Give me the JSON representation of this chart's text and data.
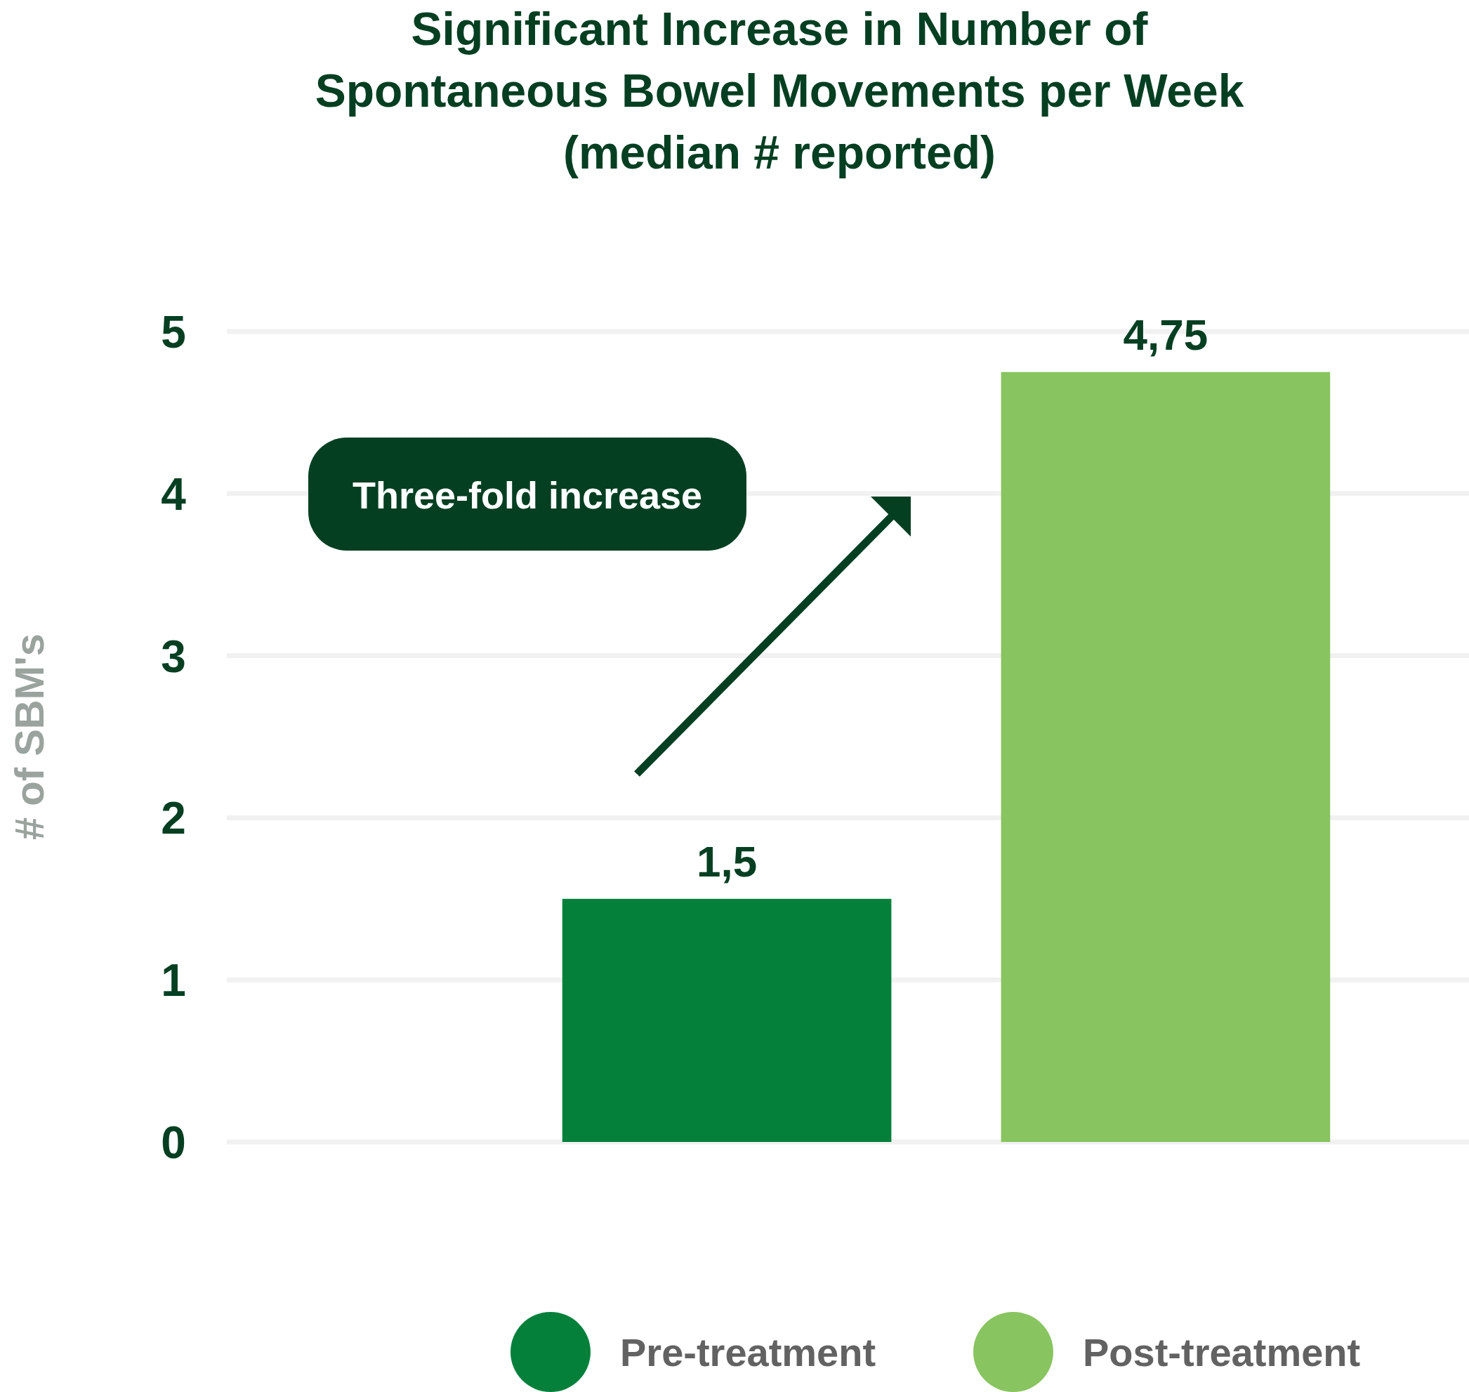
{
  "chart_data": {
    "type": "bar",
    "title": "Significant Increase in Number of\nSpontaneous Bowel Movements per Week\n(median # reported)",
    "ylabel": "# of SBM's",
    "categories": [
      null
    ],
    "series": [
      {
        "name": "Pre-treatment",
        "color": "#05803b",
        "values": [
          1.5
        ],
        "value_labels": [
          "1,5"
        ]
      },
      {
        "name": "Post-treatment",
        "color": "#88c460",
        "values": [
          4.75
        ],
        "value_labels": [
          "4,75"
        ]
      }
    ],
    "ylim": [
      0,
      5
    ],
    "yticks": [
      0,
      1,
      2,
      3,
      4,
      5
    ],
    "grid": "y",
    "legend": "bottom",
    "annotations": [
      "Three-fold increase"
    ]
  }
}
